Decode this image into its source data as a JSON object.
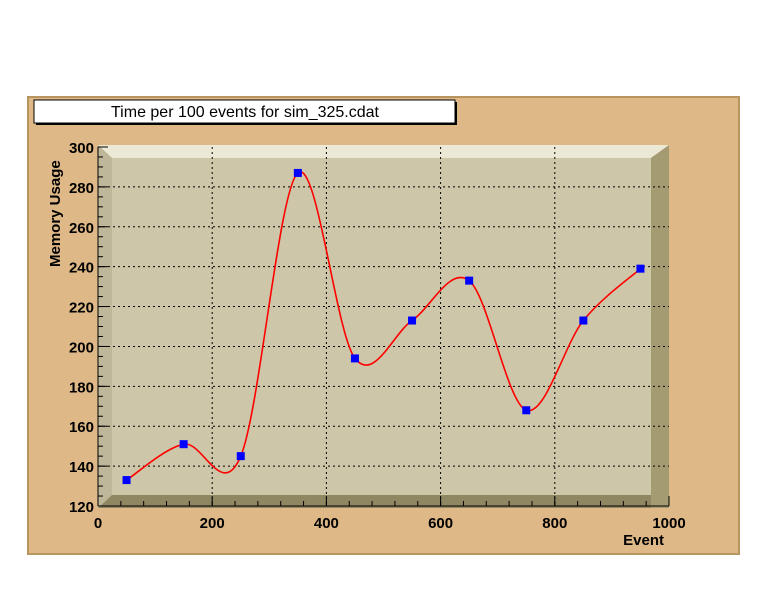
{
  "chart_data": {
    "type": "line",
    "title": "Time per 100 events for sim_325.cdat",
    "xlabel": "Event",
    "ylabel": "Memory Usage",
    "xlim": [
      0,
      1000
    ],
    "ylim": [
      120,
      300
    ],
    "x_ticks": [
      "0",
      "200",
      "400",
      "600",
      "800",
      "1000"
    ],
    "y_ticks": [
      "120",
      "140",
      "160",
      "180",
      "200",
      "220",
      "240",
      "260",
      "280",
      "300"
    ],
    "grid": true,
    "series": [
      {
        "x": [
          50,
          150,
          250,
          350,
          450,
          550,
          650,
          750,
          850,
          950
        ],
        "y": [
          133,
          151,
          145,
          287,
          194,
          213,
          233,
          168,
          213,
          239
        ],
        "line_color": "#ff0000",
        "marker_color": "#0000ff",
        "smooth": true
      }
    ]
  },
  "colors": {
    "canvas_background": "#deb887",
    "plot_background": "#cdc6a8",
    "frame_dark": "#a59b72",
    "frame_light": "#ece8d6"
  }
}
